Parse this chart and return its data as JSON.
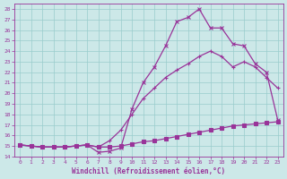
{
  "xlabel": "Windchill (Refroidissement éolien,°C)",
  "bg_color": "#cce8e8",
  "grid_color": "#99cccc",
  "line_color": "#993399",
  "xlim": [
    -0.5,
    23.5
  ],
  "ylim": [
    14,
    28.5
  ],
  "xticks": [
    0,
    1,
    2,
    3,
    4,
    5,
    6,
    7,
    8,
    9,
    10,
    11,
    12,
    13,
    14,
    15,
    16,
    17,
    18,
    19,
    20,
    21,
    22,
    23
  ],
  "yticks": [
    14,
    15,
    16,
    17,
    18,
    19,
    20,
    21,
    22,
    23,
    24,
    25,
    26,
    27,
    28
  ],
  "line1_x": [
    0,
    1,
    2,
    3,
    4,
    5,
    6,
    7,
    8,
    9,
    10,
    11,
    12,
    13,
    14,
    15,
    16,
    17,
    18,
    19,
    20,
    21,
    22,
    23
  ],
  "line1_y": [
    15.1,
    15.0,
    14.9,
    14.9,
    14.9,
    15.0,
    15.1,
    14.9,
    14.9,
    15.0,
    15.2,
    15.4,
    15.5,
    15.7,
    15.9,
    16.1,
    16.3,
    16.5,
    16.7,
    16.9,
    17.0,
    17.1,
    17.2,
    17.3
  ],
  "line2_x": [
    0,
    1,
    2,
    3,
    4,
    5,
    6,
    7,
    8,
    9,
    10,
    11,
    12,
    13,
    14,
    15,
    16,
    17,
    18,
    19,
    20,
    21,
    22,
    23
  ],
  "line2_y": [
    15.1,
    15.0,
    14.9,
    14.9,
    14.9,
    15.0,
    15.1,
    14.9,
    15.5,
    16.5,
    18.0,
    19.5,
    20.5,
    21.5,
    22.2,
    22.8,
    23.5,
    24.0,
    23.5,
    22.5,
    23.0,
    22.5,
    21.5,
    20.5
  ],
  "line3_x": [
    0,
    1,
    2,
    3,
    4,
    5,
    6,
    7,
    8,
    9,
    10,
    11,
    12,
    13,
    14,
    15,
    16,
    17,
    18,
    19,
    20,
    21,
    22,
    23
  ],
  "line3_y": [
    15.1,
    15.0,
    14.9,
    14.9,
    14.9,
    15.0,
    15.1,
    14.4,
    14.5,
    14.8,
    18.5,
    21.0,
    22.5,
    24.5,
    26.8,
    27.2,
    28.0,
    26.2,
    26.2,
    24.7,
    24.5,
    22.8,
    22.0,
    17.5
  ]
}
